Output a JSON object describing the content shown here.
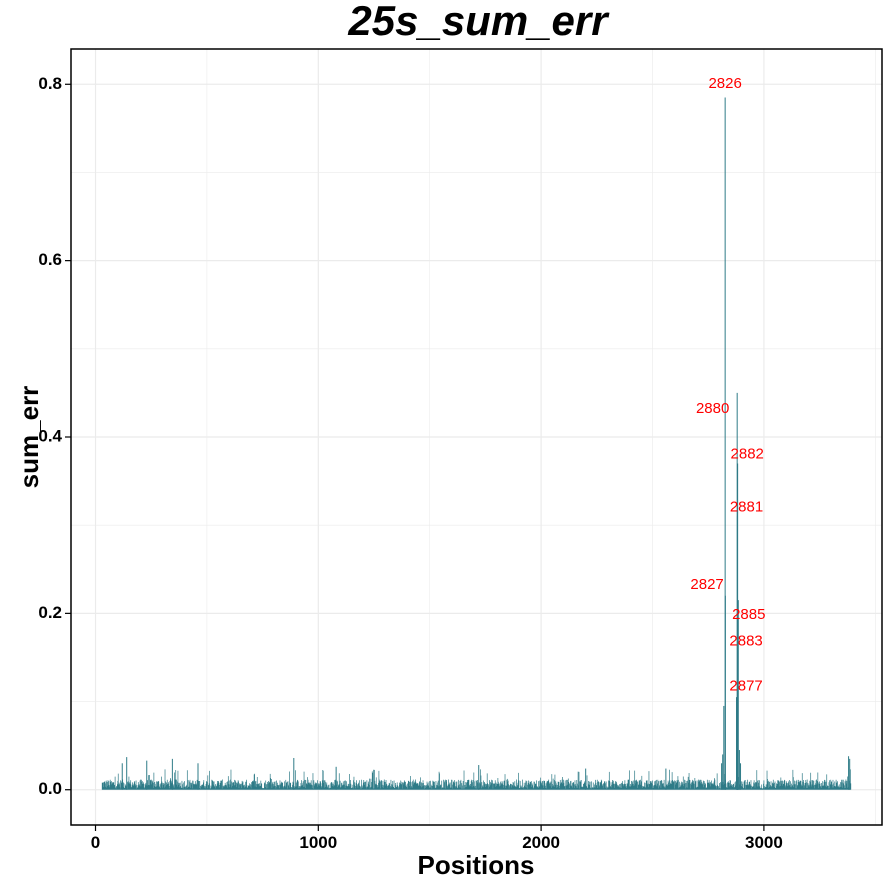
{
  "chart_data": {
    "type": "bar",
    "title": "25s_sum_err",
    "xlabel": "Positions",
    "ylabel": "sum_err",
    "xlim": [
      -110,
      3530
    ],
    "ylim": [
      -0.04,
      0.84
    ],
    "x_ticks": [
      0,
      1000,
      2000,
      3000
    ],
    "y_ticks": [
      0.0,
      0.2,
      0.4,
      0.6,
      0.8
    ],
    "y_tick_labels": [
      "0.0",
      "0.2",
      "0.4",
      "0.6",
      "0.8"
    ],
    "grid": true,
    "bar_color": "#2e7b87",
    "annotation_color": "#ff0000",
    "x_range": [
      30,
      3390
    ],
    "baseline_level": 0.008,
    "peaks": [
      {
        "x": 120,
        "value": 0.03
      },
      {
        "x": 140,
        "value": 0.037
      },
      {
        "x": 230,
        "value": 0.033
      },
      {
        "x": 345,
        "value": 0.035
      },
      {
        "x": 460,
        "value": 0.03
      },
      {
        "x": 890,
        "value": 0.036
      },
      {
        "x": 1080,
        "value": 0.026
      },
      {
        "x": 1720,
        "value": 0.028
      },
      {
        "x": 2200,
        "value": 0.024
      },
      {
        "x": 2560,
        "value": 0.024
      },
      {
        "x": 2810,
        "value": 0.03
      },
      {
        "x": 2815,
        "value": 0.04
      },
      {
        "x": 2820,
        "value": 0.095
      },
      {
        "x": 2826,
        "value": 0.785
      },
      {
        "x": 2827,
        "value": 0.22
      },
      {
        "x": 2877,
        "value": 0.105
      },
      {
        "x": 2880,
        "value": 0.45
      },
      {
        "x": 2881,
        "value": 0.31
      },
      {
        "x": 2882,
        "value": 0.37
      },
      {
        "x": 2883,
        "value": 0.158
      },
      {
        "x": 2885,
        "value": 0.215
      },
      {
        "x": 2890,
        "value": 0.045
      },
      {
        "x": 2895,
        "value": 0.03
      },
      {
        "x": 3380,
        "value": 0.038
      },
      {
        "x": 3385,
        "value": 0.035
      }
    ],
    "annotations": [
      {
        "label": "2826",
        "x": 2826,
        "y": 0.8
      },
      {
        "label": "2880",
        "x": 2770,
        "y": 0.432
      },
      {
        "label": "2882",
        "x": 2925,
        "y": 0.38
      },
      {
        "label": "2881",
        "x": 2922,
        "y": 0.32
      },
      {
        "label": "2827",
        "x": 2745,
        "y": 0.232
      },
      {
        "label": "2885",
        "x": 2932,
        "y": 0.198
      },
      {
        "label": "2883",
        "x": 2920,
        "y": 0.168
      },
      {
        "label": "2877",
        "x": 2920,
        "y": 0.117
      }
    ]
  }
}
